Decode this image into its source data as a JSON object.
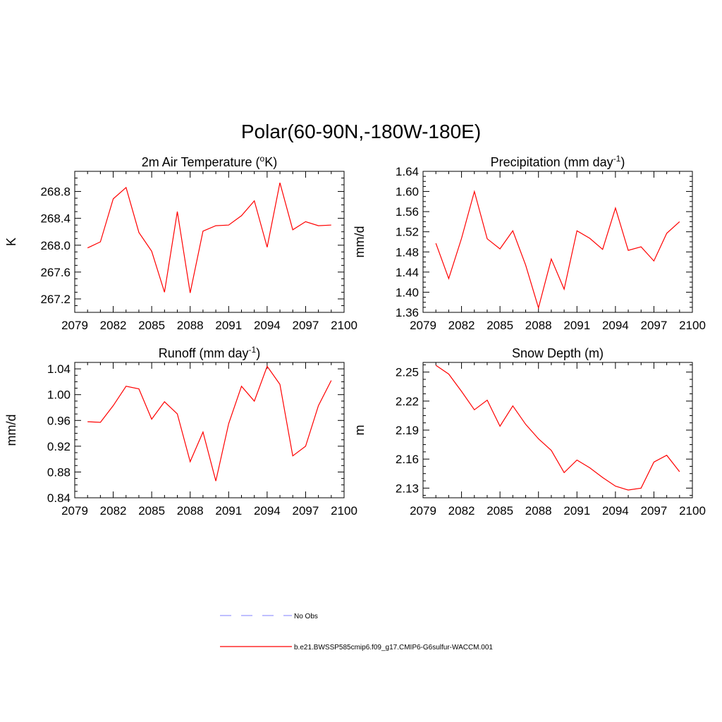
{
  "title": "Polar(60-90N,-180W-180E)",
  "chart_data": [
    {
      "type": "line",
      "title": "2m Air Temperature (°K)",
      "title_main": "2m Air Temperature (",
      "title_sup": "o",
      "title_tail": "K)",
      "ylabel": "K",
      "xlim": [
        2079,
        2100
      ],
      "ylim": [
        267.0,
        269.1
      ],
      "xticks": [
        2079,
        2082,
        2085,
        2088,
        2091,
        2094,
        2097,
        2100
      ],
      "xtick_labels": [
        "2079",
        "2082",
        "2085",
        "2088",
        "2091",
        "2094",
        "2097",
        "2100"
      ],
      "yticks": [
        267.2,
        267.6,
        268.0,
        268.4,
        268.8
      ],
      "ytick_labels": [
        "267.2",
        "267.6",
        "268.0",
        "268.4",
        "268.8"
      ],
      "x": [
        2080,
        2081,
        2082,
        2083,
        2084,
        2085,
        2086,
        2087,
        2088,
        2089,
        2090,
        2091,
        2092,
        2093,
        2094,
        2095,
        2096,
        2097,
        2098,
        2099
      ],
      "series": [
        {
          "color": "#ff0000",
          "values": [
            267.96,
            268.05,
            268.69,
            268.86,
            268.19,
            267.91,
            267.3,
            268.5,
            267.29,
            268.21,
            268.29,
            268.3,
            268.44,
            268.66,
            267.97,
            268.93,
            268.23,
            268.35,
            268.29,
            268.3
          ]
        }
      ]
    },
    {
      "type": "line",
      "title": "Precipitation (mm day-1)",
      "title_main": "Precipitation (mm day",
      "title_sup": "-1",
      "title_tail": ")",
      "ylabel": "mm/d",
      "xlim": [
        2079,
        2100
      ],
      "ylim": [
        1.36,
        1.64
      ],
      "xticks": [
        2079,
        2082,
        2085,
        2088,
        2091,
        2094,
        2097,
        2100
      ],
      "xtick_labels": [
        "2079",
        "2082",
        "2085",
        "2088",
        "2091",
        "2094",
        "2097",
        "2100"
      ],
      "yticks": [
        1.36,
        1.4,
        1.44,
        1.48,
        1.52,
        1.56,
        1.6,
        1.64
      ],
      "ytick_labels": [
        "1.36",
        "1.40",
        "1.44",
        "1.48",
        "1.52",
        "1.56",
        "1.60",
        "1.64"
      ],
      "x": [
        2080,
        2081,
        2082,
        2083,
        2084,
        2085,
        2086,
        2087,
        2088,
        2089,
        2090,
        2091,
        2092,
        2093,
        2094,
        2095,
        2096,
        2097,
        2098,
        2099
      ],
      "series": [
        {
          "color": "#ff0000",
          "values": [
            1.497,
            1.427,
            1.507,
            1.6,
            1.506,
            1.486,
            1.522,
            1.454,
            1.369,
            1.466,
            1.406,
            1.522,
            1.507,
            1.485,
            1.567,
            1.483,
            1.49,
            1.462,
            1.517,
            1.54
          ]
        }
      ]
    },
    {
      "type": "line",
      "title": "Runoff (mm day-1)",
      "title_main": "Runoff (mm day",
      "title_sup": "-1",
      "title_tail": ")",
      "ylabel": "mm/d",
      "xlim": [
        2079,
        2100
      ],
      "ylim": [
        0.84,
        1.05
      ],
      "xticks": [
        2079,
        2082,
        2085,
        2088,
        2091,
        2094,
        2097,
        2100
      ],
      "xtick_labels": [
        "2079",
        "2082",
        "2085",
        "2088",
        "2091",
        "2094",
        "2097",
        "2100"
      ],
      "yticks": [
        0.84,
        0.88,
        0.92,
        0.96,
        1.0,
        1.04
      ],
      "ytick_labels": [
        "0.84",
        "0.88",
        "0.92",
        "0.96",
        "1.00",
        "1.04"
      ],
      "x": [
        2080,
        2081,
        2082,
        2083,
        2084,
        2085,
        2086,
        2087,
        2088,
        2089,
        2090,
        2091,
        2092,
        2093,
        2094,
        2095,
        2096,
        2097,
        2098,
        2099
      ],
      "series": [
        {
          "color": "#ff0000",
          "values": [
            0.958,
            0.957,
            0.983,
            1.013,
            1.009,
            0.962,
            0.989,
            0.97,
            0.896,
            0.942,
            0.866,
            0.955,
            1.013,
            0.99,
            1.044,
            1.016,
            0.905,
            0.92,
            0.983,
            1.022
          ]
        }
      ]
    },
    {
      "type": "line",
      "title": "Snow Depth (m)",
      "title_main": "Snow Depth (m)",
      "title_sup": "",
      "title_tail": "",
      "ylabel": "m",
      "xlim": [
        2079,
        2100
      ],
      "ylim": [
        2.12,
        2.26
      ],
      "xticks": [
        2079,
        2082,
        2085,
        2088,
        2091,
        2094,
        2097,
        2100
      ],
      "xtick_labels": [
        "2079",
        "2082",
        "2085",
        "2088",
        "2091",
        "2094",
        "2097",
        "2100"
      ],
      "yticks": [
        2.13,
        2.16,
        2.19,
        2.22,
        2.25
      ],
      "ytick_labels": [
        "2.13",
        "2.16",
        "2.19",
        "2.22",
        "2.25"
      ],
      "x": [
        2080,
        2081,
        2082,
        2083,
        2084,
        2085,
        2086,
        2087,
        2088,
        2089,
        2090,
        2091,
        2092,
        2093,
        2094,
        2095,
        2096,
        2097,
        2098,
        2099
      ],
      "series": [
        {
          "color": "#ff0000",
          "values": [
            2.257,
            2.248,
            2.23,
            2.211,
            2.221,
            2.194,
            2.215,
            2.196,
            2.181,
            2.169,
            2.146,
            2.159,
            2.151,
            2.141,
            2.132,
            2.128,
            2.13,
            2.157,
            2.164,
            2.147
          ]
        }
      ]
    }
  ],
  "legend": [
    {
      "label": "No Obs",
      "color": "#9999ff",
      "style": "dashed"
    },
    {
      "label": "b.e21.BWSSP585cmip6.f09_g17.CMIP6-G6sulfur-WACCM.001",
      "color": "#ff0000",
      "style": "solid"
    }
  ]
}
